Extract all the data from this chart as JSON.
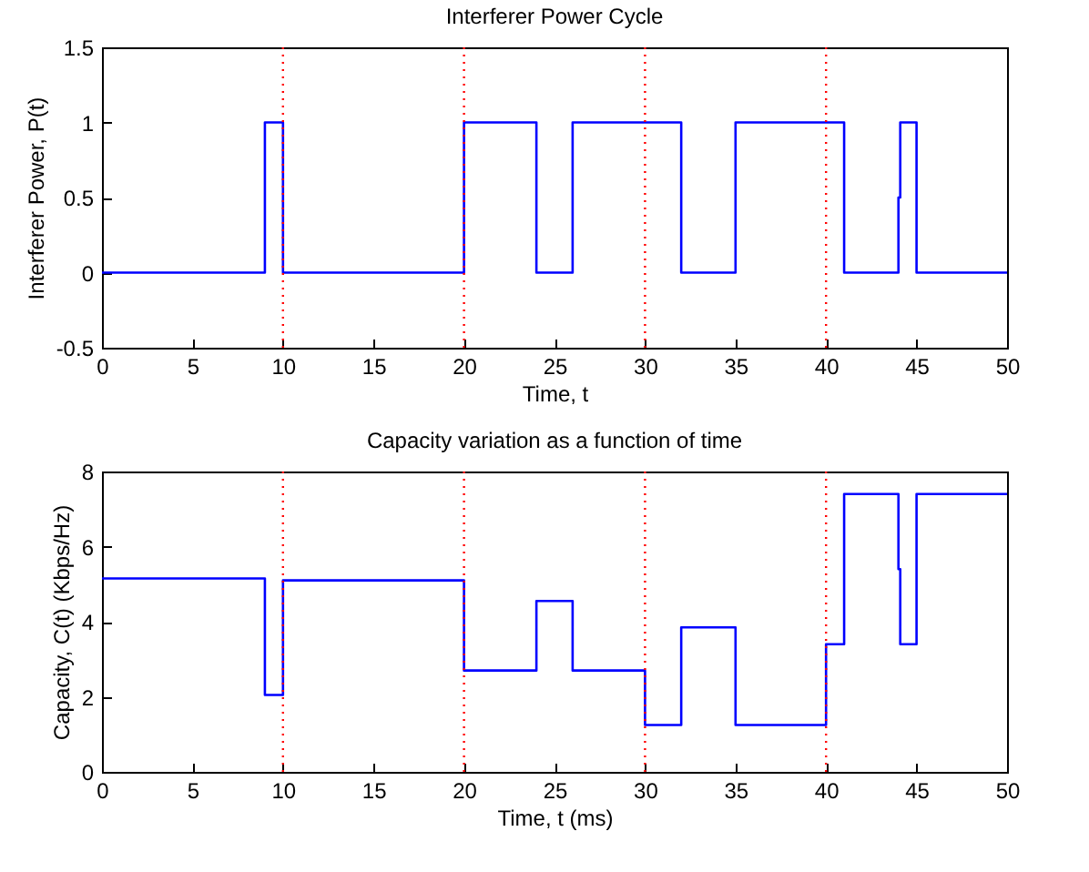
{
  "chart_data": [
    {
      "type": "line",
      "title": "Interferer Power Cycle",
      "xlabel": "Time, t",
      "ylabel": "Interferer Power, P(t)",
      "x": [
        0,
        9,
        9,
        10,
        10,
        20,
        20,
        24,
        24,
        26,
        26,
        32,
        32,
        35,
        35,
        41,
        41,
        44,
        44,
        44.1,
        44.1,
        45,
        45,
        50
      ],
      "series": [
        {
          "color": "#0000ff",
          "values": [
            0,
            0,
            1,
            1,
            0,
            0,
            1,
            1,
            0,
            0,
            1,
            1,
            0,
            0,
            1,
            1,
            0,
            0,
            0.5,
            0.5,
            1,
            1,
            0,
            0
          ]
        }
      ],
      "xlim": [
        0,
        50
      ],
      "xticks": [
        0,
        5,
        10,
        15,
        20,
        25,
        30,
        35,
        40,
        45,
        50
      ],
      "ylim": [
        -0.5,
        1.5
      ],
      "yticks": [
        -0.5,
        0,
        0.5,
        1,
        1.5
      ],
      "ref_lines": [
        {
          "axis": "x",
          "value": 10,
          "color": "#ff0000",
          "line_style": "dotted"
        },
        {
          "axis": "x",
          "value": 20,
          "color": "#ff0000",
          "line_style": "dotted"
        },
        {
          "axis": "x",
          "value": 30,
          "color": "#ff0000",
          "line_style": "dotted"
        },
        {
          "axis": "x",
          "value": 40,
          "color": "#ff0000",
          "line_style": "dotted"
        }
      ],
      "grid": false,
      "line_style": "solid",
      "marker": "none"
    },
    {
      "type": "line",
      "title": "Capacity variation as a function of time",
      "xlabel": "Time, t (ms)",
      "ylabel": "Capacity, C(t) (Kbps/Hz)",
      "x": [
        0,
        9,
        9,
        10,
        10,
        20,
        20,
        24,
        24,
        26,
        26,
        30,
        30,
        32,
        32,
        35,
        35,
        40,
        40,
        41,
        41,
        44,
        44,
        44.1,
        44.1,
        45,
        45,
        50
      ],
      "series": [
        {
          "color": "#0000ff",
          "values": [
            5.15,
            5.15,
            2.05,
            2.05,
            5.1,
            5.1,
            2.7,
            2.7,
            4.55,
            4.55,
            2.7,
            2.7,
            1.25,
            1.25,
            3.85,
            3.85,
            1.25,
            1.25,
            3.4,
            3.4,
            7.4,
            7.4,
            5.4,
            5.4,
            3.4,
            3.4,
            7.4,
            7.4
          ]
        }
      ],
      "xlim": [
        0,
        50
      ],
      "xticks": [
        0,
        5,
        10,
        15,
        20,
        25,
        30,
        35,
        40,
        45,
        50
      ],
      "ylim": [
        0,
        8
      ],
      "yticks": [
        0,
        2,
        4,
        6,
        8
      ],
      "ref_lines": [
        {
          "axis": "x",
          "value": 10,
          "color": "#ff0000",
          "line_style": "dotted"
        },
        {
          "axis": "x",
          "value": 20,
          "color": "#ff0000",
          "line_style": "dotted"
        },
        {
          "axis": "x",
          "value": 30,
          "color": "#ff0000",
          "line_style": "dotted"
        },
        {
          "axis": "x",
          "value": 40,
          "color": "#ff0000",
          "line_style": "dotted"
        }
      ],
      "grid": false,
      "line_style": "solid",
      "marker": "none"
    }
  ]
}
